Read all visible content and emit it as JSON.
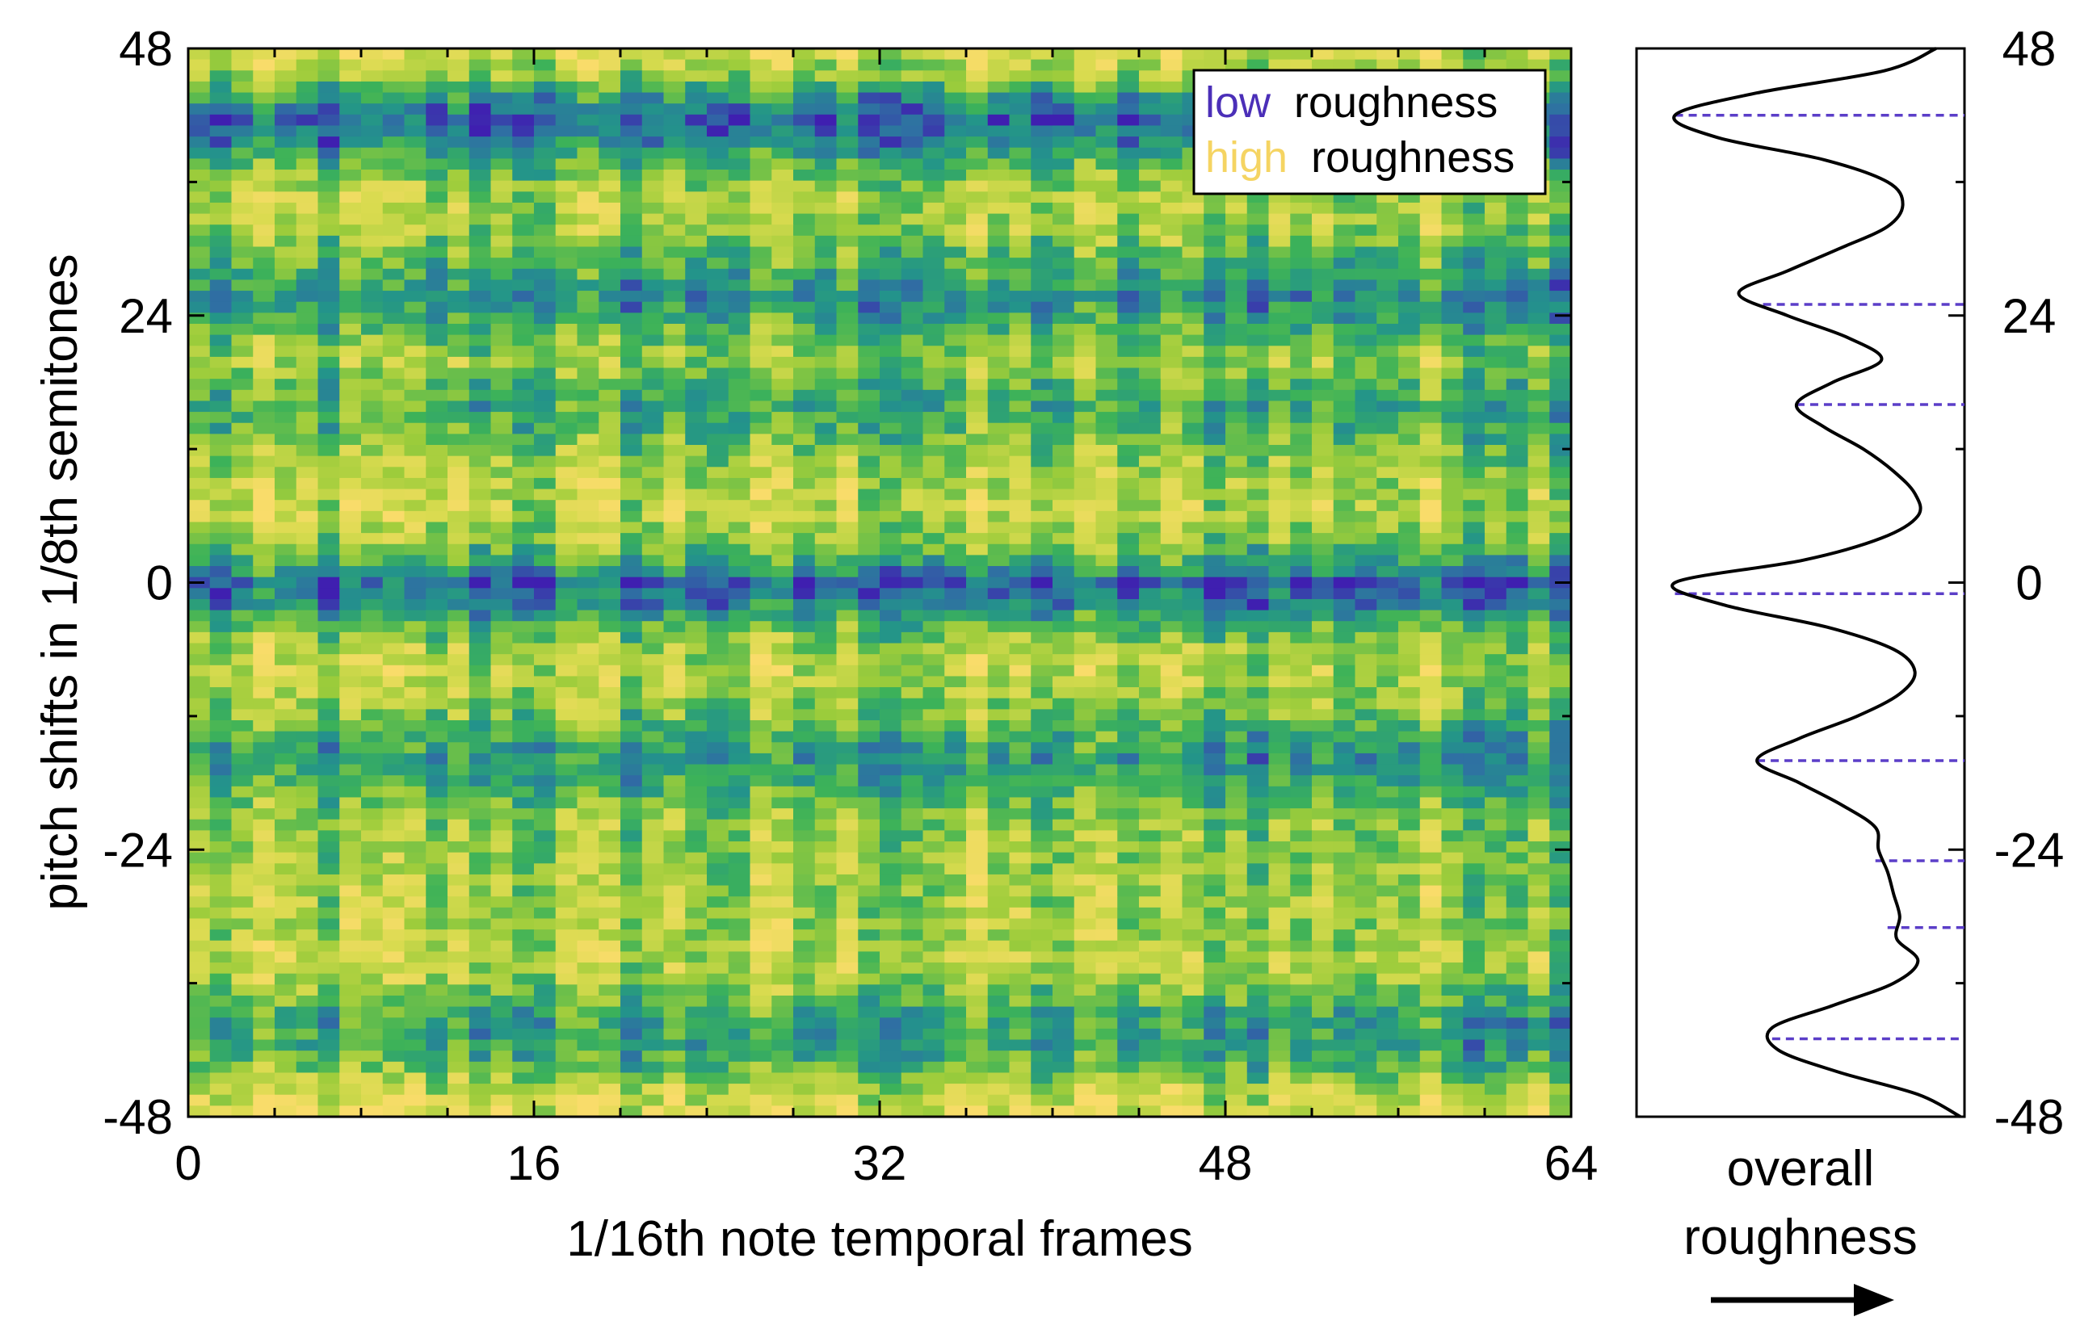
{
  "chart_data": [
    {
      "type": "heatmap",
      "xlabel": "1/16th note temporal frames",
      "ylabel": "pitch shifts in 1/8th semitones",
      "xlim": [
        0,
        64
      ],
      "ylim": [
        -48,
        48
      ],
      "x_ticks": [
        "0",
        "16",
        "32",
        "48",
        "64"
      ],
      "y_ticks": [
        "48",
        "24",
        "0",
        "-24",
        "-48"
      ],
      "x_cells": 64,
      "y_cells": 97,
      "colormap": [
        "#3f1fb0",
        "#2f6fa3",
        "#23948a",
        "#3cb259",
        "#9ccc3b",
        "#d9db4f",
        "#f9dc6a"
      ],
      "color_low": "#4b2fb8",
      "color_high": "#f5d462",
      "description_rows": [
        {
          "pitch": 42,
          "level": "low"
        },
        {
          "pitch": 0,
          "level": "low"
        },
        {
          "pitch": -16,
          "level": "low"
        },
        {
          "pitch": 34,
          "level": "high"
        },
        {
          "pitch": -8,
          "level": "high"
        },
        {
          "pitch": -33,
          "level": "high"
        }
      ],
      "legend": {
        "placement": "top-right",
        "low_word": "low",
        "high_word": "high",
        "suffix": "roughness"
      }
    },
    {
      "type": "line",
      "xlabel_line1": "overall",
      "xlabel_line2": "roughness",
      "ylim": [
        -48,
        48
      ],
      "y_ticks": [
        "48",
        "24",
        "0",
        "-24",
        "-48"
      ],
      "curve": [
        {
          "pitch": 48,
          "roughness": 0.92
        },
        {
          "pitch": 46,
          "roughness": 0.75
        },
        {
          "pitch": 44,
          "roughness": 0.33
        },
        {
          "pitch": 42,
          "roughness": 0.06
        },
        {
          "pitch": 40,
          "roughness": 0.2
        },
        {
          "pitch": 38,
          "roughness": 0.55
        },
        {
          "pitch": 36,
          "roughness": 0.76
        },
        {
          "pitch": 34,
          "roughness": 0.81
        },
        {
          "pitch": 32,
          "roughness": 0.76
        },
        {
          "pitch": 30,
          "roughness": 0.6
        },
        {
          "pitch": 28,
          "roughness": 0.43
        },
        {
          "pitch": 26,
          "roughness": 0.27
        },
        {
          "pitch": 24,
          "roughness": 0.43
        },
        {
          "pitch": 22,
          "roughness": 0.63
        },
        {
          "pitch": 20,
          "roughness": 0.74
        },
        {
          "pitch": 18,
          "roughness": 0.58
        },
        {
          "pitch": 16,
          "roughness": 0.46
        },
        {
          "pitch": 14,
          "roughness": 0.55
        },
        {
          "pitch": 12,
          "roughness": 0.68
        },
        {
          "pitch": 10,
          "roughness": 0.78
        },
        {
          "pitch": 8,
          "roughness": 0.85
        },
        {
          "pitch": 6,
          "roughness": 0.86
        },
        {
          "pitch": 4,
          "roughness": 0.74
        },
        {
          "pitch": 2,
          "roughness": 0.48
        },
        {
          "pitch": 0,
          "roughness": 0.06
        },
        {
          "pitch": -2,
          "roughness": 0.22
        },
        {
          "pitch": -4,
          "roughness": 0.56
        },
        {
          "pitch": -6,
          "roughness": 0.78
        },
        {
          "pitch": -8,
          "roughness": 0.85
        },
        {
          "pitch": -10,
          "roughness": 0.8
        },
        {
          "pitch": -12,
          "roughness": 0.66
        },
        {
          "pitch": -14,
          "roughness": 0.47
        },
        {
          "pitch": -16,
          "roughness": 0.33
        },
        {
          "pitch": -18,
          "roughness": 0.47
        },
        {
          "pitch": -20,
          "roughness": 0.61
        },
        {
          "pitch": -22,
          "roughness": 0.72
        },
        {
          "pitch": -24,
          "roughness": 0.73
        },
        {
          "pitch": -26,
          "roughness": 0.76
        },
        {
          "pitch": -28,
          "roughness": 0.78
        },
        {
          "pitch": -30,
          "roughness": 0.8
        },
        {
          "pitch": -32,
          "roughness": 0.79
        },
        {
          "pitch": -34,
          "roughness": 0.86
        },
        {
          "pitch": -36,
          "roughness": 0.78
        },
        {
          "pitch": -38,
          "roughness": 0.58
        },
        {
          "pitch": -40,
          "roughness": 0.38
        },
        {
          "pitch": -42,
          "roughness": 0.4
        },
        {
          "pitch": -44,
          "roughness": 0.6
        },
        {
          "pitch": -46,
          "roughness": 0.86
        },
        {
          "pitch": -48,
          "roughness": 1.0
        }
      ],
      "minima": [
        {
          "pitch": 42,
          "roughness": 0.06
        },
        {
          "pitch": 25,
          "roughness": 0.35
        },
        {
          "pitch": 16,
          "roughness": 0.46
        },
        {
          "pitch": -1,
          "roughness": 0.06
        },
        {
          "pitch": -16,
          "roughness": 0.33
        },
        {
          "pitch": -25,
          "roughness": 0.72
        },
        {
          "pitch": -31,
          "roughness": 0.76
        },
        {
          "pitch": -41,
          "roughness": 0.38
        }
      ],
      "minima_color": "#5b3ec8"
    }
  ]
}
